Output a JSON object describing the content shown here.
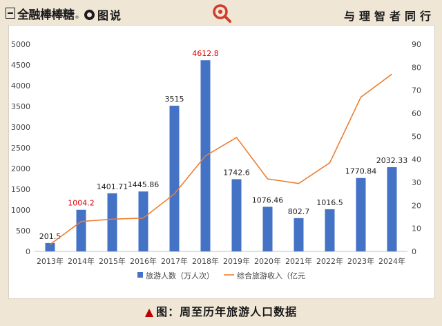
{
  "header": {
    "brand": "全融棒棒糖",
    "brand_tm": "®",
    "section": "图说",
    "slogan": "与理智者同行",
    "logo_icon": "magnifier-icon"
  },
  "caption": "图：周至历年旅游人口数据",
  "chart_data": {
    "type": "bar",
    "categories": [
      "2013年",
      "2014年",
      "2015年",
      "2016年",
      "2017年",
      "2018年",
      "2019年",
      "2020年",
      "2021年",
      "2022年",
      "2023年",
      "2024年"
    ],
    "series": [
      {
        "name": "旅游人数（万人次）",
        "type": "bar",
        "axis": "left",
        "color": "#4472c4",
        "values": [
          201.5,
          1004.2,
          1401.71,
          1445.86,
          3515,
          4612.8,
          1742.6,
          1076.46,
          802.7,
          1016.5,
          1770.84,
          2032.33
        ],
        "labels": [
          "201.5",
          "1004.2",
          "1401.71",
          "1445.86",
          "3515",
          "4612.8",
          "1742.6",
          "1076.46",
          "802.7",
          "1016.5",
          "1770.84",
          "2032.33"
        ],
        "highlighted_labels": [
          "1004.2",
          "4612.8"
        ],
        "highlight_color": "#e00000"
      },
      {
        "name": "综合旅游收入（亿元",
        "type": "line",
        "axis": "right",
        "color": "#ed7d31",
        "values": [
          3,
          13,
          14,
          14.5,
          25,
          41.5,
          49.5,
          31.5,
          29.5,
          38.5,
          67,
          77
        ]
      }
    ],
    "ylim_left": [
      0,
      5000
    ],
    "yticks_left": [
      0,
      500,
      1000,
      1500,
      2000,
      2500,
      3000,
      3500,
      4000,
      4500,
      5000
    ],
    "ylim_right": [
      0,
      90
    ],
    "yticks_right": [
      0,
      10,
      20,
      30,
      40,
      50,
      60,
      70,
      80,
      90
    ],
    "grid": false,
    "legend_position": "bottom"
  }
}
